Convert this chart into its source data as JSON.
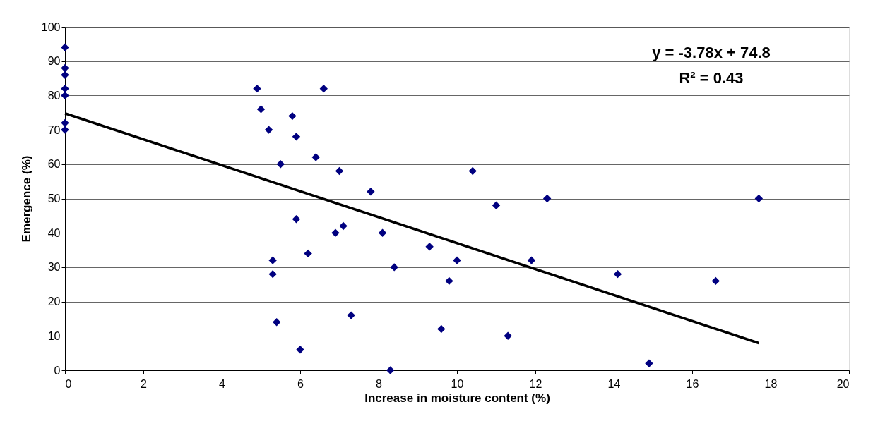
{
  "chart_data": {
    "type": "scatter",
    "xlabel": "Increase in moisture content (%)",
    "ylabel": "Emergence (%)",
    "xlim": [
      0,
      20
    ],
    "xticks": [
      0,
      2,
      4,
      6,
      8,
      10,
      12,
      14,
      16,
      18,
      20
    ],
    "ylim": [
      0,
      100
    ],
    "yticks": [
      0,
      10,
      20,
      30,
      40,
      50,
      60,
      70,
      80,
      90,
      100
    ],
    "grid": "y",
    "series": [
      {
        "marker": "diamond",
        "color": "#000080",
        "x": [
          0,
          0,
          0,
          0,
          0,
          0,
          0,
          4.9,
          5.0,
          5.2,
          5.5,
          5.8,
          5.9,
          6.6,
          6.4,
          7.0,
          5.9,
          5.3,
          5.3,
          6.2,
          5.4,
          6.0,
          6.9,
          7.1,
          7.3,
          7.8,
          8.1,
          8.4,
          8.3,
          9.3,
          9.8,
          9.6,
          10.0,
          10.4,
          11.0,
          11.3,
          11.9,
          12.3,
          14.1,
          14.9,
          16.6,
          17.7
        ],
        "values": [
          94,
          88,
          86,
          82,
          80,
          72,
          70,
          82,
          76,
          70,
          60,
          74,
          68,
          82,
          62,
          58,
          44,
          32,
          28,
          34,
          14,
          6,
          40,
          42,
          16,
          52,
          40,
          30,
          0,
          36,
          26,
          12,
          32,
          58,
          48,
          10,
          32,
          50,
          28,
          2,
          26,
          50
        ]
      },
      {
        "type": "line",
        "color": "#000000",
        "line_style": "solid",
        "x": [
          0,
          17.7
        ],
        "values": [
          74.8,
          7.9
        ]
      }
    ],
    "annotations": [
      "y = -3.78x + 74.8",
      "R² = 0.43"
    ]
  }
}
